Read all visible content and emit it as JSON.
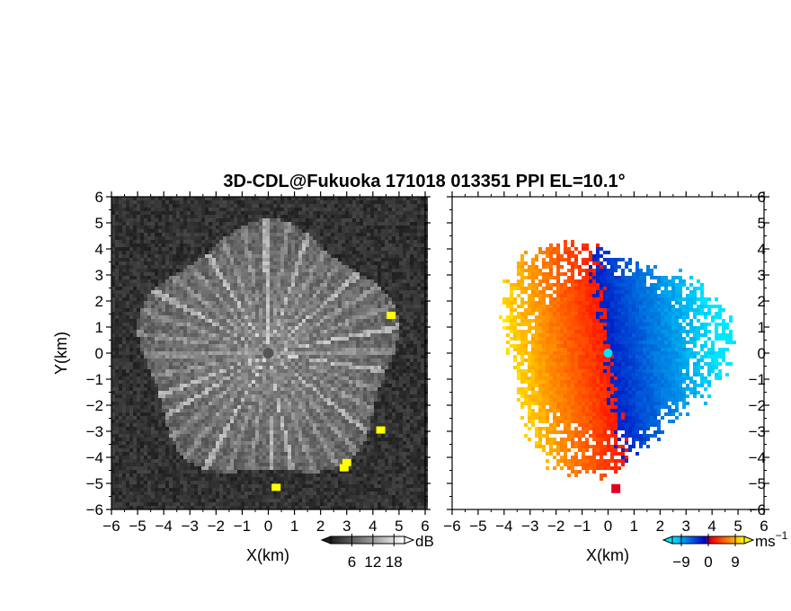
{
  "title": "3D-CDL@Fukuoka 171018 013351 PPI EL=10.1°",
  "chart_data": [
    {
      "type": "heatmap",
      "panel": "left",
      "field": "signal intensity",
      "xlabel": "X(km)",
      "ylabel": "Y(km)",
      "xlim": [
        -6,
        6
      ],
      "ylim": [
        -6,
        6
      ],
      "xticks": [
        "−6",
        "−5",
        "−4",
        "−3",
        "−2",
        "−1",
        "0",
        "1",
        "2",
        "3",
        "4",
        "5",
        "6"
      ],
      "yticks": [
        "6",
        "5",
        "4",
        "3",
        "2",
        "1",
        "0",
        "−1",
        "−2",
        "−3",
        "−4",
        "−5",
        "−6"
      ],
      "scan_radius_km": 4.8,
      "colorbar": {
        "unit": "dB",
        "tick_labels": [
          "6",
          "12",
          "18"
        ],
        "range": [
          0,
          21
        ],
        "colormap": "grayscale",
        "colors": {
          "low": "#1e1e1e",
          "high": "#ffffff",
          "over": "#ffff00"
        }
      },
      "hotspots": [
        {
          "x": 4.7,
          "y": 1.45
        },
        {
          "x": 4.3,
          "y": -2.95
        },
        {
          "x": 2.9,
          "y": -4.4
        },
        {
          "x": 3.0,
          "y": -4.2
        },
        {
          "x": 0.3,
          "y": -5.15
        }
      ]
    },
    {
      "type": "heatmap",
      "panel": "right",
      "field": "radial velocity",
      "xlabel": "X(km)",
      "xlim": [
        -6,
        6
      ],
      "ylim": [
        -6,
        6
      ],
      "xticks": [
        "−6",
        "−5",
        "−4",
        "−3",
        "−2",
        "−1",
        "0",
        "1",
        "2",
        "3",
        "4",
        "5",
        "6"
      ],
      "yticks": [
        "6",
        "5",
        "4",
        "3",
        "2",
        "1",
        "0",
        "−1",
        "−2",
        "−3",
        "−4",
        "−5",
        "−6"
      ],
      "scan_radius_km": 5.1,
      "colorbar": {
        "unit": "ms",
        "unit_exponent": "−1",
        "tick_labels": [
          "−9",
          "0",
          "9"
        ],
        "range": [
          -12,
          12
        ],
        "colormap": "cyan-blue-red-yellow",
        "colors": {
          "min": "#00e5ff",
          "mid_neg": "#0000cc",
          "mid_pos": "#ff0000",
          "max": "#ffff00"
        }
      }
    }
  ]
}
